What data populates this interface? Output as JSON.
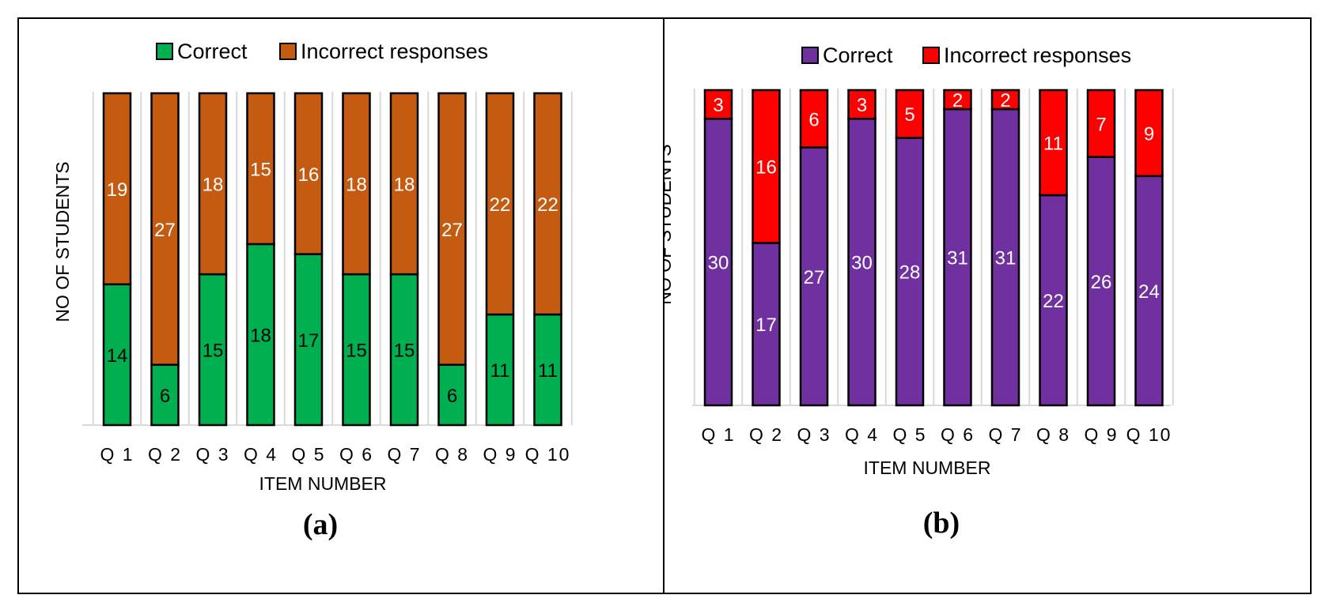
{
  "chart_data": [
    {
      "type": "bar",
      "stacked": true,
      "panel_label": "(a)",
      "categories": [
        "Q 1",
        "Q 2",
        "Q 3",
        "Q 4",
        "Q 5",
        "Q 6",
        "Q 7",
        "Q 8",
        "Q 9",
        "Q 10"
      ],
      "series": [
        {
          "name": "Correct",
          "color": "#00b050",
          "label_color": "#000000",
          "values": [
            14,
            6,
            15,
            18,
            17,
            15,
            15,
            6,
            11,
            11
          ]
        },
        {
          "name": "Incorrect responses",
          "color": "#c55a11",
          "label_color": "#ffffff",
          "values": [
            19,
            27,
            18,
            15,
            16,
            18,
            18,
            27,
            22,
            22
          ]
        }
      ],
      "xlabel": "ITEM NUMBER",
      "ylabel": "NO OF STUDENTS",
      "grid": "vertical",
      "legend": "top-center"
    },
    {
      "type": "bar",
      "stacked": true,
      "panel_label": "(b)",
      "categories": [
        "Q 1",
        "Q 2",
        "Q 3",
        "Q 4",
        "Q 5",
        "Q 6",
        "Q 7",
        "Q 8",
        "Q 9",
        "Q 10"
      ],
      "series": [
        {
          "name": "Correct",
          "color": "#7030a0",
          "label_color": "#ffffff",
          "values": [
            30,
            17,
            27,
            30,
            28,
            31,
            31,
            22,
            26,
            24
          ]
        },
        {
          "name": "Incorrect responses",
          "color": "#ff0000",
          "label_color": "#ffffff",
          "values": [
            3,
            16,
            6,
            3,
            5,
            2,
            2,
            11,
            7,
            9
          ]
        }
      ],
      "xlabel": "ITEM NUMBER",
      "ylabel": "NO OF STUDENTS",
      "grid": "vertical",
      "legend": "top-center"
    }
  ]
}
